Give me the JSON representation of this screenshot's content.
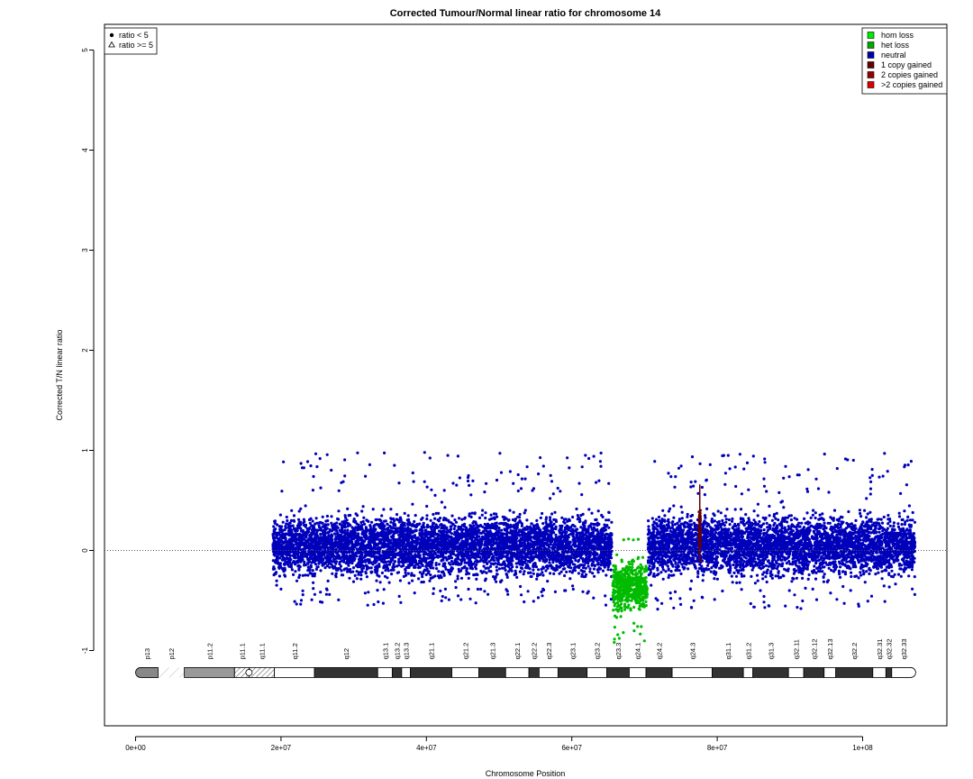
{
  "chart_data": {
    "type": "scatter",
    "title": "Corrected Tumour/Normal linear ratio for chromosome  14",
    "xlabel": "Chromosome Position",
    "ylabel": "Corrected T/N linear ratio",
    "xlim": [
      0,
      107000000
    ],
    "ylim": [
      -1.8,
      5.3
    ],
    "x_ticks": [
      0,
      20000000,
      40000000,
      60000000,
      80000000,
      100000000
    ],
    "x_tick_labels": [
      "0e+00",
      "2e+07",
      "4e+07",
      "6e+07",
      "8e+07",
      "1e+08"
    ],
    "y_ticks": [
      -1,
      0,
      1,
      2,
      3,
      4,
      5
    ],
    "y_tick_labels": [
      "-1",
      "0",
      "1",
      "2",
      "3",
      "4",
      "5"
    ],
    "reference_line": 0,
    "grid": false,
    "series": [
      {
        "name": "neutral",
        "color": "#0000bb",
        "segments": [
          {
            "x_start": 18900000,
            "x_end": 65500000,
            "median": 0.05,
            "low": -0.38,
            "high": 0.55,
            "max": 0.99,
            "min": -0.55
          },
          {
            "x_start": 70500000,
            "x_end": 107200000,
            "median": 0.05,
            "low": -0.38,
            "high": 0.55,
            "max": 0.97,
            "min": -0.6
          }
        ]
      },
      {
        "name": "het loss",
        "color": "#00bb00",
        "segments": [
          {
            "x_start": 65600000,
            "x_end": 70400000,
            "median": -0.35,
            "low": -0.7,
            "high": 0.1,
            "max": 0.12,
            "min": -0.92
          }
        ]
      },
      {
        "name": "1 copy gained",
        "color": "#660000",
        "segments": [
          {
            "x_start": 77500000,
            "x_end": 77700000,
            "median": 0.2,
            "low": -0.1,
            "high": 0.65,
            "max": 0.66,
            "min": -0.1
          }
        ]
      }
    ],
    "shape_legend": {
      "placement": "top-left",
      "items": [
        {
          "label": "ratio < 5",
          "symbol": "filled-circle"
        },
        {
          "label": "ratio >= 5",
          "symbol": "open-triangle"
        }
      ]
    },
    "legend": {
      "placement": "top-right",
      "items": [
        {
          "label": "hom loss",
          "color": "#00ee00"
        },
        {
          "label": "het loss",
          "color": "#00aa00"
        },
        {
          "label": "neutral",
          "color": "#0000aa"
        },
        {
          "label": "1 copy gained",
          "color": "#660000"
        },
        {
          "label": "2 copies gained",
          "color": "#990000"
        },
        {
          "label": ">2 copies gained",
          "color": "#dd0000"
        }
      ]
    },
    "ideogram": {
      "y": -1.22,
      "bands": [
        {
          "name": "p13",
          "start": 0,
          "end": 3100000,
          "stain": "gpos",
          "shade": "#888888"
        },
        {
          "name": "p12",
          "start": 3100000,
          "end": 6700000,
          "stain": "stalk",
          "shade": "#ffffff"
        },
        {
          "name": "p11.2",
          "start": 6700000,
          "end": 13600000,
          "stain": "gpos",
          "shade": "#999999"
        },
        {
          "name": "p11.1",
          "start": 13600000,
          "end": 15600000,
          "stain": "acen",
          "shade": "#ffffff"
        },
        {
          "name": "q11.1",
          "start": 15600000,
          "end": 19100000,
          "stain": "acen",
          "shade": "#ffffff"
        },
        {
          "name": "q11.2",
          "start": 19100000,
          "end": 24600000,
          "stain": "gneg",
          "shade": "#ffffff"
        },
        {
          "name": "q12",
          "start": 24600000,
          "end": 33300000,
          "stain": "gpos",
          "shade": "#333333"
        },
        {
          "name": "q13.1",
          "start": 33300000,
          "end": 35300000,
          "stain": "gneg",
          "shade": "#ffffff"
        },
        {
          "name": "q13.2",
          "start": 35300000,
          "end": 36600000,
          "stain": "gpos",
          "shade": "#333333"
        },
        {
          "name": "q13.3",
          "start": 36600000,
          "end": 37800000,
          "stain": "gneg",
          "shade": "#ffffff"
        },
        {
          "name": "q21.1",
          "start": 37800000,
          "end": 43500000,
          "stain": "gpos",
          "shade": "#333333"
        },
        {
          "name": "q21.2",
          "start": 43500000,
          "end": 47200000,
          "stain": "gneg",
          "shade": "#ffffff"
        },
        {
          "name": "q21.3",
          "start": 47200000,
          "end": 50900000,
          "stain": "gpos",
          "shade": "#333333"
        },
        {
          "name": "q22.1",
          "start": 50900000,
          "end": 54100000,
          "stain": "gneg",
          "shade": "#ffffff"
        },
        {
          "name": "q22.2",
          "start": 54100000,
          "end": 55500000,
          "stain": "gpos",
          "shade": "#333333"
        },
        {
          "name": "q22.3",
          "start": 55500000,
          "end": 58100000,
          "stain": "gneg",
          "shade": "#ffffff"
        },
        {
          "name": "q23.1",
          "start": 58100000,
          "end": 62100000,
          "stain": "gpos",
          "shade": "#333333"
        },
        {
          "name": "q23.2",
          "start": 62100000,
          "end": 64800000,
          "stain": "gneg",
          "shade": "#ffffff"
        },
        {
          "name": "q23.3",
          "start": 64800000,
          "end": 67900000,
          "stain": "gpos",
          "shade": "#333333"
        },
        {
          "name": "q24.1",
          "start": 67900000,
          "end": 70200000,
          "stain": "gneg",
          "shade": "#ffffff"
        },
        {
          "name": "q24.2",
          "start": 70200000,
          "end": 73800000,
          "stain": "gpos",
          "shade": "#333333"
        },
        {
          "name": "q24.3",
          "start": 73800000,
          "end": 79300000,
          "stain": "gneg",
          "shade": "#ffffff"
        },
        {
          "name": "q31.1",
          "start": 79300000,
          "end": 83600000,
          "stain": "gpos",
          "shade": "#333333"
        },
        {
          "name": "q31.2",
          "start": 83600000,
          "end": 84900000,
          "stain": "gneg",
          "shade": "#ffffff"
        },
        {
          "name": "q31.3",
          "start": 84900000,
          "end": 89800000,
          "stain": "gpos",
          "shade": "#333333"
        },
        {
          "name": "q32.11",
          "start": 89800000,
          "end": 91900000,
          "stain": "gneg",
          "shade": "#ffffff"
        },
        {
          "name": "q32.12",
          "start": 91900000,
          "end": 94700000,
          "stain": "gpos",
          "shade": "#333333"
        },
        {
          "name": "q32.13",
          "start": 94700000,
          "end": 96300000,
          "stain": "gneg",
          "shade": "#ffffff"
        },
        {
          "name": "q32.2",
          "start": 96300000,
          "end": 101400000,
          "stain": "gpos",
          "shade": "#333333"
        },
        {
          "name": "q32.31",
          "start": 101400000,
          "end": 103200000,
          "stain": "gneg",
          "shade": "#ffffff"
        },
        {
          "name": "q32.32",
          "start": 103200000,
          "end": 104000000,
          "stain": "gpos",
          "shade": "#333333"
        },
        {
          "name": "q32.33",
          "start": 104000000,
          "end": 107300000,
          "stain": "gneg",
          "shade": "#ffffff"
        }
      ]
    }
  }
}
